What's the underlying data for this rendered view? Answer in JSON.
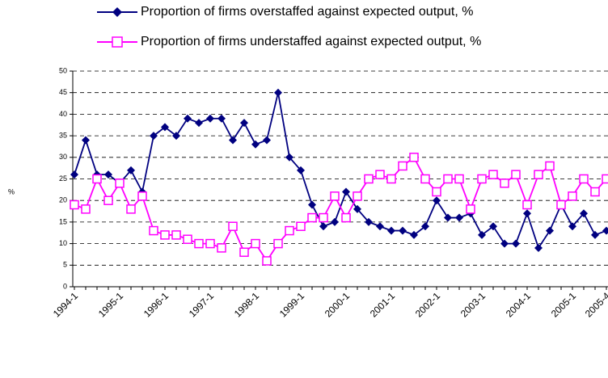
{
  "chart_data": {
    "type": "line",
    "y_label": "%",
    "categories": [
      "1994-1",
      null,
      null,
      null,
      "1995-1",
      null,
      null,
      null,
      "1996-1",
      null,
      null,
      null,
      "1997-1",
      null,
      null,
      null,
      "1998-1",
      null,
      null,
      null,
      "1999-1",
      null,
      null,
      null,
      "2000-1",
      null,
      null,
      null,
      "2001-1",
      null,
      null,
      null,
      "2002-1",
      null,
      null,
      null,
      "2003-1",
      null,
      null,
      null,
      "2004-1",
      null,
      null,
      null,
      "2005-1",
      null,
      null,
      "2005-4"
    ],
    "series": [
      {
        "name": "Proportion of firms overstaffed against expected output, %",
        "color": "#000080",
        "marker": "diamond",
        "values": [
          26,
          34,
          26,
          26,
          24,
          27,
          22,
          35,
          37,
          35,
          39,
          38,
          39,
          39,
          34,
          38,
          33,
          34,
          45,
          30,
          27,
          19,
          14,
          15,
          22,
          18,
          15,
          14,
          13,
          13,
          12,
          14,
          20,
          16,
          16,
          17,
          12,
          14,
          10,
          10,
          17,
          9,
          13,
          19,
          14,
          17,
          12,
          13
        ]
      },
      {
        "name": "Proportion of firms understaffed against expected output, %",
        "color": "#ff00ff",
        "marker": "square",
        "values": [
          19,
          18,
          25,
          20,
          24,
          18,
          21,
          13,
          12,
          12,
          11,
          10,
          10,
          9,
          14,
          8,
          10,
          6,
          10,
          13,
          14,
          16,
          16,
          21,
          16,
          21,
          25,
          26,
          25,
          28,
          30,
          25,
          22,
          25,
          25,
          18,
          25,
          26,
          24,
          26,
          19,
          26,
          28,
          19,
          21,
          25,
          22,
          25
        ]
      }
    ],
    "ylim": [
      0,
      50
    ],
    "yticks": [
      0,
      5,
      10,
      15,
      20,
      25,
      30,
      35,
      40,
      45,
      50
    ],
    "grid": true
  }
}
